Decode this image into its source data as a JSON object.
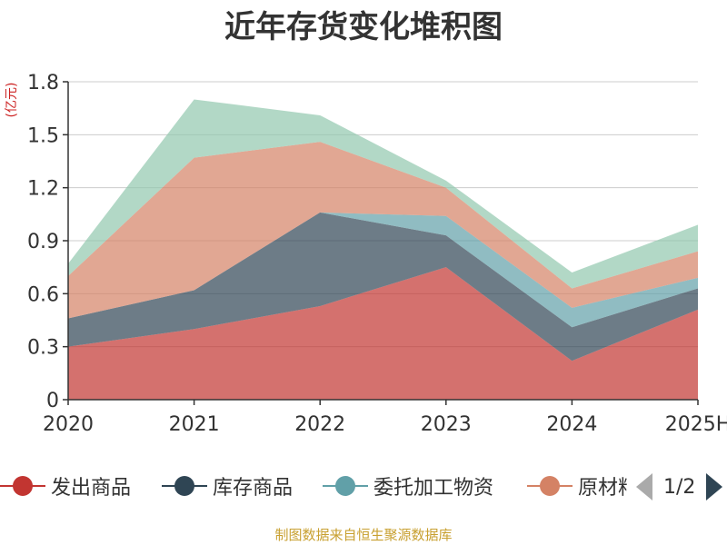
{
  "chart_data": {
    "type": "area",
    "stacked": true,
    "title": "近年存货变化堆积图",
    "ylabel": "(亿元)",
    "categories": [
      "2020",
      "2021",
      "2022",
      "2023",
      "2024",
      "2025H"
    ],
    "ylim": [
      0,
      1.8
    ],
    "yticks": [
      "0",
      "0.3",
      "0.6",
      "0.9",
      "1.2",
      "1.5",
      "1.8"
    ],
    "grid": true,
    "legend_position": "bottom",
    "series": [
      {
        "name": "发出商品",
        "color": "#c23531",
        "values": [
          0.3,
          0.4,
          0.53,
          0.75,
          0.22,
          0.51
        ]
      },
      {
        "name": "库存商品",
        "color": "#2f4554",
        "values": [
          0.16,
          0.22,
          0.53,
          0.18,
          0.19,
          0.12
        ]
      },
      {
        "name": "委托加工物资",
        "color": "#61a0a8",
        "values": [
          0.0,
          0.0,
          0.0,
          0.11,
          0.11,
          0.06
        ]
      },
      {
        "name": "原材料",
        "color": "#d48265",
        "values": [
          0.24,
          0.75,
          0.4,
          0.16,
          0.11,
          0.15
        ]
      },
      {
        "name": "",
        "color": "#91c7ae",
        "values": [
          0.07,
          0.33,
          0.15,
          0.04,
          0.09,
          0.15
        ]
      }
    ]
  },
  "legend": {
    "items": [
      {
        "label": "发出商品",
        "color": "#c23531"
      },
      {
        "label": "库存商品",
        "color": "#2f4554"
      },
      {
        "label": "委托加工物资",
        "color": "#61a0a8"
      },
      {
        "label": "原材料",
        "color": "#d48265"
      }
    ],
    "page": "1/2"
  },
  "source": "制图数据来自恒生聚源数据库"
}
